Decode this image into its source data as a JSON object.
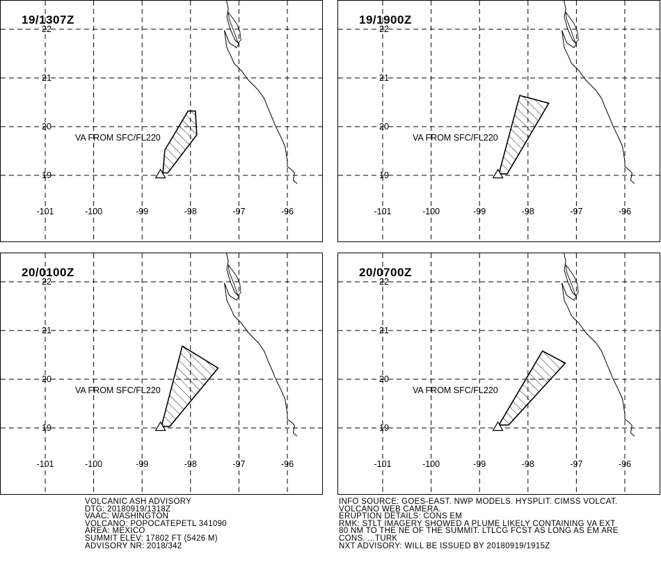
{
  "panels": [
    {
      "title": "19/1307Z",
      "label": "VA FROM SFC/FL220",
      "polygon": [
        [
          -98.57,
          19.05
        ],
        [
          -98.53,
          19.52
        ],
        [
          -98.05,
          20.32
        ],
        [
          -97.9,
          20.32
        ],
        [
          -97.87,
          19.83
        ],
        [
          -98.47,
          19.05
        ]
      ]
    },
    {
      "title": "19/1900Z",
      "label": "VA FROM SFC/FL220",
      "polygon": [
        [
          -98.6,
          19.03
        ],
        [
          -98.17,
          20.64
        ],
        [
          -97.57,
          20.48
        ],
        [
          -98.43,
          19.03
        ]
      ]
    },
    {
      "title": "20/0100Z",
      "label": "VA FROM SFC/FL220",
      "polygon": [
        [
          -98.6,
          19.03
        ],
        [
          -98.17,
          20.68
        ],
        [
          -97.43,
          20.23
        ],
        [
          -98.43,
          19.03
        ]
      ]
    },
    {
      "title": "20/0700Z",
      "label": "VA FROM SFC/FL220",
      "polygon": [
        [
          -98.6,
          19.06
        ],
        [
          -97.7,
          20.58
        ],
        [
          -97.23,
          20.33
        ],
        [
          -98.4,
          19.06
        ]
      ]
    }
  ],
  "axes": {
    "lon_ticks": [
      -101,
      -100,
      -99,
      -98,
      -97,
      -96
    ],
    "lat_ticks": [
      19,
      20,
      21,
      22
    ],
    "lon_labels": [
      "-101",
      "-100",
      "-99",
      "-98",
      "-97",
      "-96"
    ],
    "lat_labels": [
      "19",
      "20",
      "21",
      "22"
    ]
  },
  "volcano": {
    "lon": -98.62,
    "lat": 19.02,
    "symbol": "triangle"
  },
  "advisory_left": [
    "VOLCANIC ASH ADVISORY",
    "DTG: 20180919/1318Z",
    "VAAC: WASHINGTON",
    "VOLCANO: POPOCATEPETL 341090",
    "AREA: MEXICO",
    "SUMMIT ELEV: 17802 FT (5426 M)",
    "ADVISORY NR: 2018/342"
  ],
  "advisory_right": [
    "INFO SOURCE: GOES-EAST. NWP MODELS. HYSPLIT. CIMSS VOLCAT.",
    "VOLCANO WEB CAMERA.",
    "ERUPTION DETAILS: CONS EM",
    "RMK: STLT IMAGERY SHOWED A PLUME LIKELY CONTAINING VA EXT",
    "80 NM TO THE NE OF THE SUMMIT. LTLCG FCST AS LONG AS EM ARE",
    "CONS. ...TURK",
    "NXT ADVISORY: WILL BE ISSUED BY 20180919/1915Z"
  ],
  "colors": {
    "line": "#000000",
    "background": "#ffffff"
  }
}
